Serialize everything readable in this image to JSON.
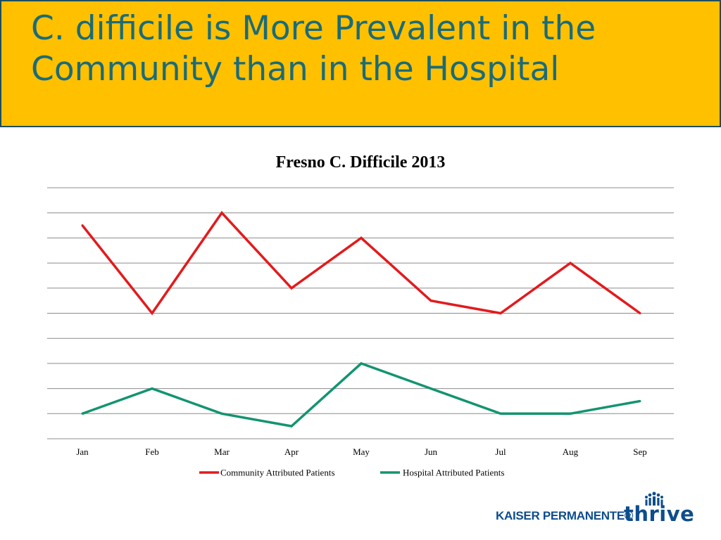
{
  "slide": {
    "title": "C. difficile is More Prevalent in the Community than in the Hospital"
  },
  "colors": {
    "title_bg": "#ffc000",
    "title_text": "#1b6b78",
    "community": "#e31a1c",
    "hospital": "#139470",
    "gridline": "#8c8c8c",
    "brand": "#0d4d8c"
  },
  "logo": {
    "brand_text": "KAISER PERMANENTE®",
    "tagline": "thrive",
    "symbol_icon": "kaiser-permanente-symbol-icon"
  },
  "chart_data": {
    "type": "line",
    "title": "Fresno C. Difficile 2013",
    "categories": [
      "Jan",
      "Feb",
      "Mar",
      "Apr",
      "May",
      "Jun",
      "Jul",
      "Aug",
      "Sep"
    ],
    "series": [
      {
        "name": "Community Attributed Patients",
        "values": [
          8.5,
          5,
          9,
          6,
          8,
          5.5,
          5,
          7,
          5
        ]
      },
      {
        "name": "Hospital Attributed Patients",
        "values": [
          1,
          2,
          1,
          0.5,
          3,
          2,
          1,
          1,
          1.5
        ]
      }
    ],
    "ylim": [
      0,
      10
    ],
    "y_tick_step": 1,
    "y_tick_labels_visible": false,
    "grid": true,
    "legend": "bottom"
  }
}
